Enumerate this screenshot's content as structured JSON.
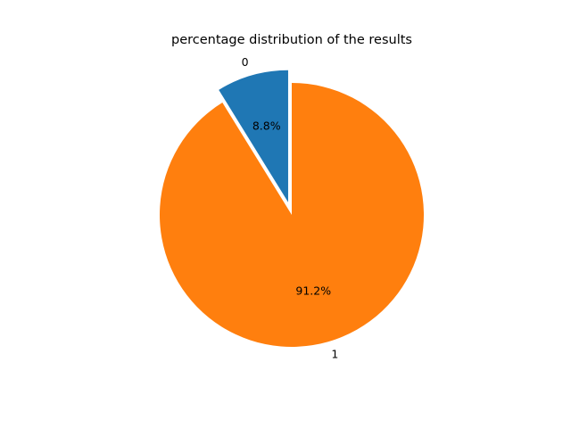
{
  "chart_data": {
    "type": "pie",
    "title": "percentage distribution of the results",
    "categories": [
      "0",
      "1"
    ],
    "values": [
      8.8,
      91.2
    ],
    "value_labels": [
      "8.8%",
      "91.2%"
    ],
    "colors": [
      "#1f77b4",
      "#ff7f0e"
    ],
    "explode": [
      0.1,
      0
    ],
    "start_angle_deg": 90,
    "direction": "counterclockwise",
    "legend": "none"
  }
}
